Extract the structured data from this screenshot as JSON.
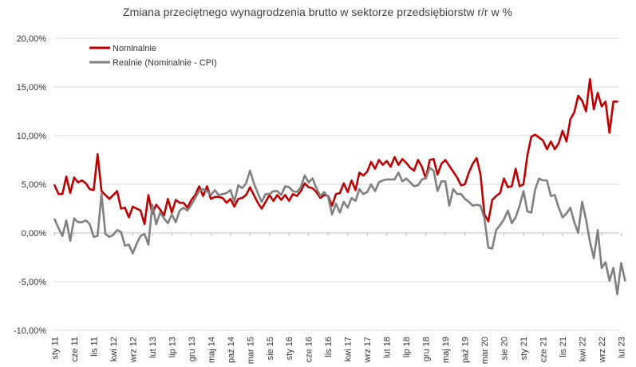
{
  "chart_data": {
    "type": "line",
    "title": "Zmiana przeciętnego wynagrodzenia brutto w sektorze przedsiębiorstw r/r w %",
    "xlabel": "",
    "ylabel": "",
    "ylim": [
      -10,
      20
    ],
    "y_ticks": [
      20,
      15,
      10,
      5,
      0,
      -5,
      -10
    ],
    "y_tick_labels": [
      "20,00%",
      "15,00%",
      "10,00%",
      "5,00%",
      "0,00%",
      "-5,00%",
      "-10,00%"
    ],
    "x_tick_labels": [
      "sty 11",
      "cze 11",
      "lis 11",
      "kwi 12",
      "wrz 12",
      "lut 13",
      "lip 13",
      "gru 13",
      "maj 14",
      "paź 14",
      "mar 15",
      "sie 15",
      "sty 16",
      "cze 16",
      "lis 16",
      "kwi 17",
      "wrz 17",
      "lut 18",
      "lip 18",
      "gru 18",
      "maj 19",
      "paź 19",
      "mar 20",
      "sie 20",
      "sty 21",
      "cze 21",
      "lis 21",
      "kwi 22",
      "wrz 22",
      "lut 23"
    ],
    "x_tick_month_index": [
      0,
      5,
      10,
      15,
      20,
      25,
      30,
      35,
      40,
      45,
      50,
      55,
      60,
      65,
      70,
      75,
      80,
      85,
      90,
      95,
      100,
      105,
      110,
      115,
      120,
      125,
      130,
      135,
      140,
      145
    ],
    "grid": "horizontal",
    "legend_position": "top-left",
    "series": [
      {
        "name": "Nominalnie",
        "color": "#C00000",
        "values": [
          4.9,
          4.0,
          4.0,
          5.8,
          4.1,
          5.7,
          5.2,
          5.4,
          5.1,
          4.5,
          4.4,
          8.1,
          4.3,
          3.9,
          3.5,
          3.9,
          4.3,
          2.5,
          2.6,
          1.6,
          2.7,
          2.5,
          2.3,
          0.9,
          3.9,
          2.0,
          2.9,
          2.4,
          1.8,
          3.5,
          2.1,
          3.4,
          3.1,
          3.1,
          2.6,
          3.4,
          3.9,
          4.8,
          3.8,
          4.8,
          3.5,
          3.7,
          3.7,
          3.6,
          3.1,
          3.5,
          2.7,
          3.5,
          3.6,
          3.9,
          4.7,
          3.9,
          3.1,
          2.5,
          3.2,
          3.9,
          3.3,
          3.9,
          3.4,
          3.9,
          3.3,
          4.0,
          3.8,
          4.3,
          5.1,
          4.7,
          4.6,
          4.2,
          3.6,
          3.9,
          3.8,
          2.8,
          4.0,
          4.1,
          5.1,
          4.2,
          5.4,
          4.4,
          6.2,
          5.9,
          6.3,
          7.3,
          6.6,
          7.5,
          7.0,
          7.4,
          6.8,
          7.8,
          7.0,
          7.6,
          7.2,
          6.7,
          6.4,
          7.5,
          6.8,
          5.6,
          7.5,
          7.6,
          6.0,
          7.1,
          7.5,
          6.9,
          6.3,
          5.7,
          4.9,
          5.0,
          6.2,
          7.1,
          7.7,
          6.0,
          1.9,
          1.2,
          3.4,
          3.8,
          4.1,
          5.6,
          4.7,
          4.8,
          6.6,
          4.8,
          5.0,
          8.0,
          9.9,
          10.1,
          9.8,
          9.5,
          8.6,
          9.4,
          8.6,
          9.2,
          10.5,
          9.4,
          11.7,
          12.4,
          14.1,
          13.6,
          12.5,
          15.8,
          12.7,
          14.4,
          13.0,
          13.5,
          10.3,
          13.5,
          13.5
        ]
      },
      {
        "name": "Realnie (Nominalnie - CPI)",
        "color": "#808080",
        "values": [
          1.4,
          0.5,
          -0.3,
          1.3,
          -0.8,
          1.5,
          1.1,
          1.1,
          1.3,
          0.9,
          -0.4,
          -0.3,
          4.0,
          -0.1,
          -0.4,
          -0.2,
          0.3,
          0.1,
          -1.3,
          -1.2,
          -2.1,
          -1.1,
          -0.3,
          -0.1,
          -1.2,
          2.9,
          0.9,
          2.1,
          1.5,
          1.0,
          1.9,
          1.1,
          2.3,
          2.6,
          2.3,
          2.9,
          3.6,
          4.3,
          4.5,
          4.3,
          3.9,
          4.4,
          3.9,
          4.0,
          4.1,
          4.4,
          3.2,
          4.9,
          4.6,
          5.1,
          6.4,
          5.1,
          4.1,
          3.2,
          4.0,
          4.0,
          4.3,
          4.3,
          3.9,
          4.8,
          4.7,
          4.3,
          4.2,
          4.7,
          5.9,
          5.2,
          5.6,
          4.6,
          3.8,
          4.2,
          3.7,
          1.9,
          3.0,
          2.1,
          3.2,
          2.6,
          3.6,
          3.3,
          4.5,
          4.0,
          4.2,
          5.0,
          4.3,
          5.2,
          5.4,
          5.5,
          5.5,
          5.5,
          6.2,
          5.3,
          5.6,
          5.2,
          4.8,
          4.9,
          5.5,
          5.6,
          6.7,
          6.4,
          4.3,
          5.3,
          5.3,
          2.8,
          4.5,
          4.0,
          4.0,
          3.5,
          3.2,
          2.8,
          2.9,
          2.8,
          1.5,
          -1.5,
          -1.6,
          0.3,
          0.8,
          1.4,
          2.3,
          1.0,
          1.6,
          2.8,
          4.3,
          2.2,
          2.1,
          4.5,
          5.6,
          5.4,
          5.4,
          3.8,
          3.9,
          2.6,
          1.6,
          2.0,
          2.6,
          1.1,
          0.0,
          3.2,
          1.4,
          -0.9,
          -2.6,
          0.3,
          -3.6,
          -3.0,
          -4.9,
          -3.6,
          -6.3,
          -3.1,
          -4.9
        ]
      }
    ]
  }
}
